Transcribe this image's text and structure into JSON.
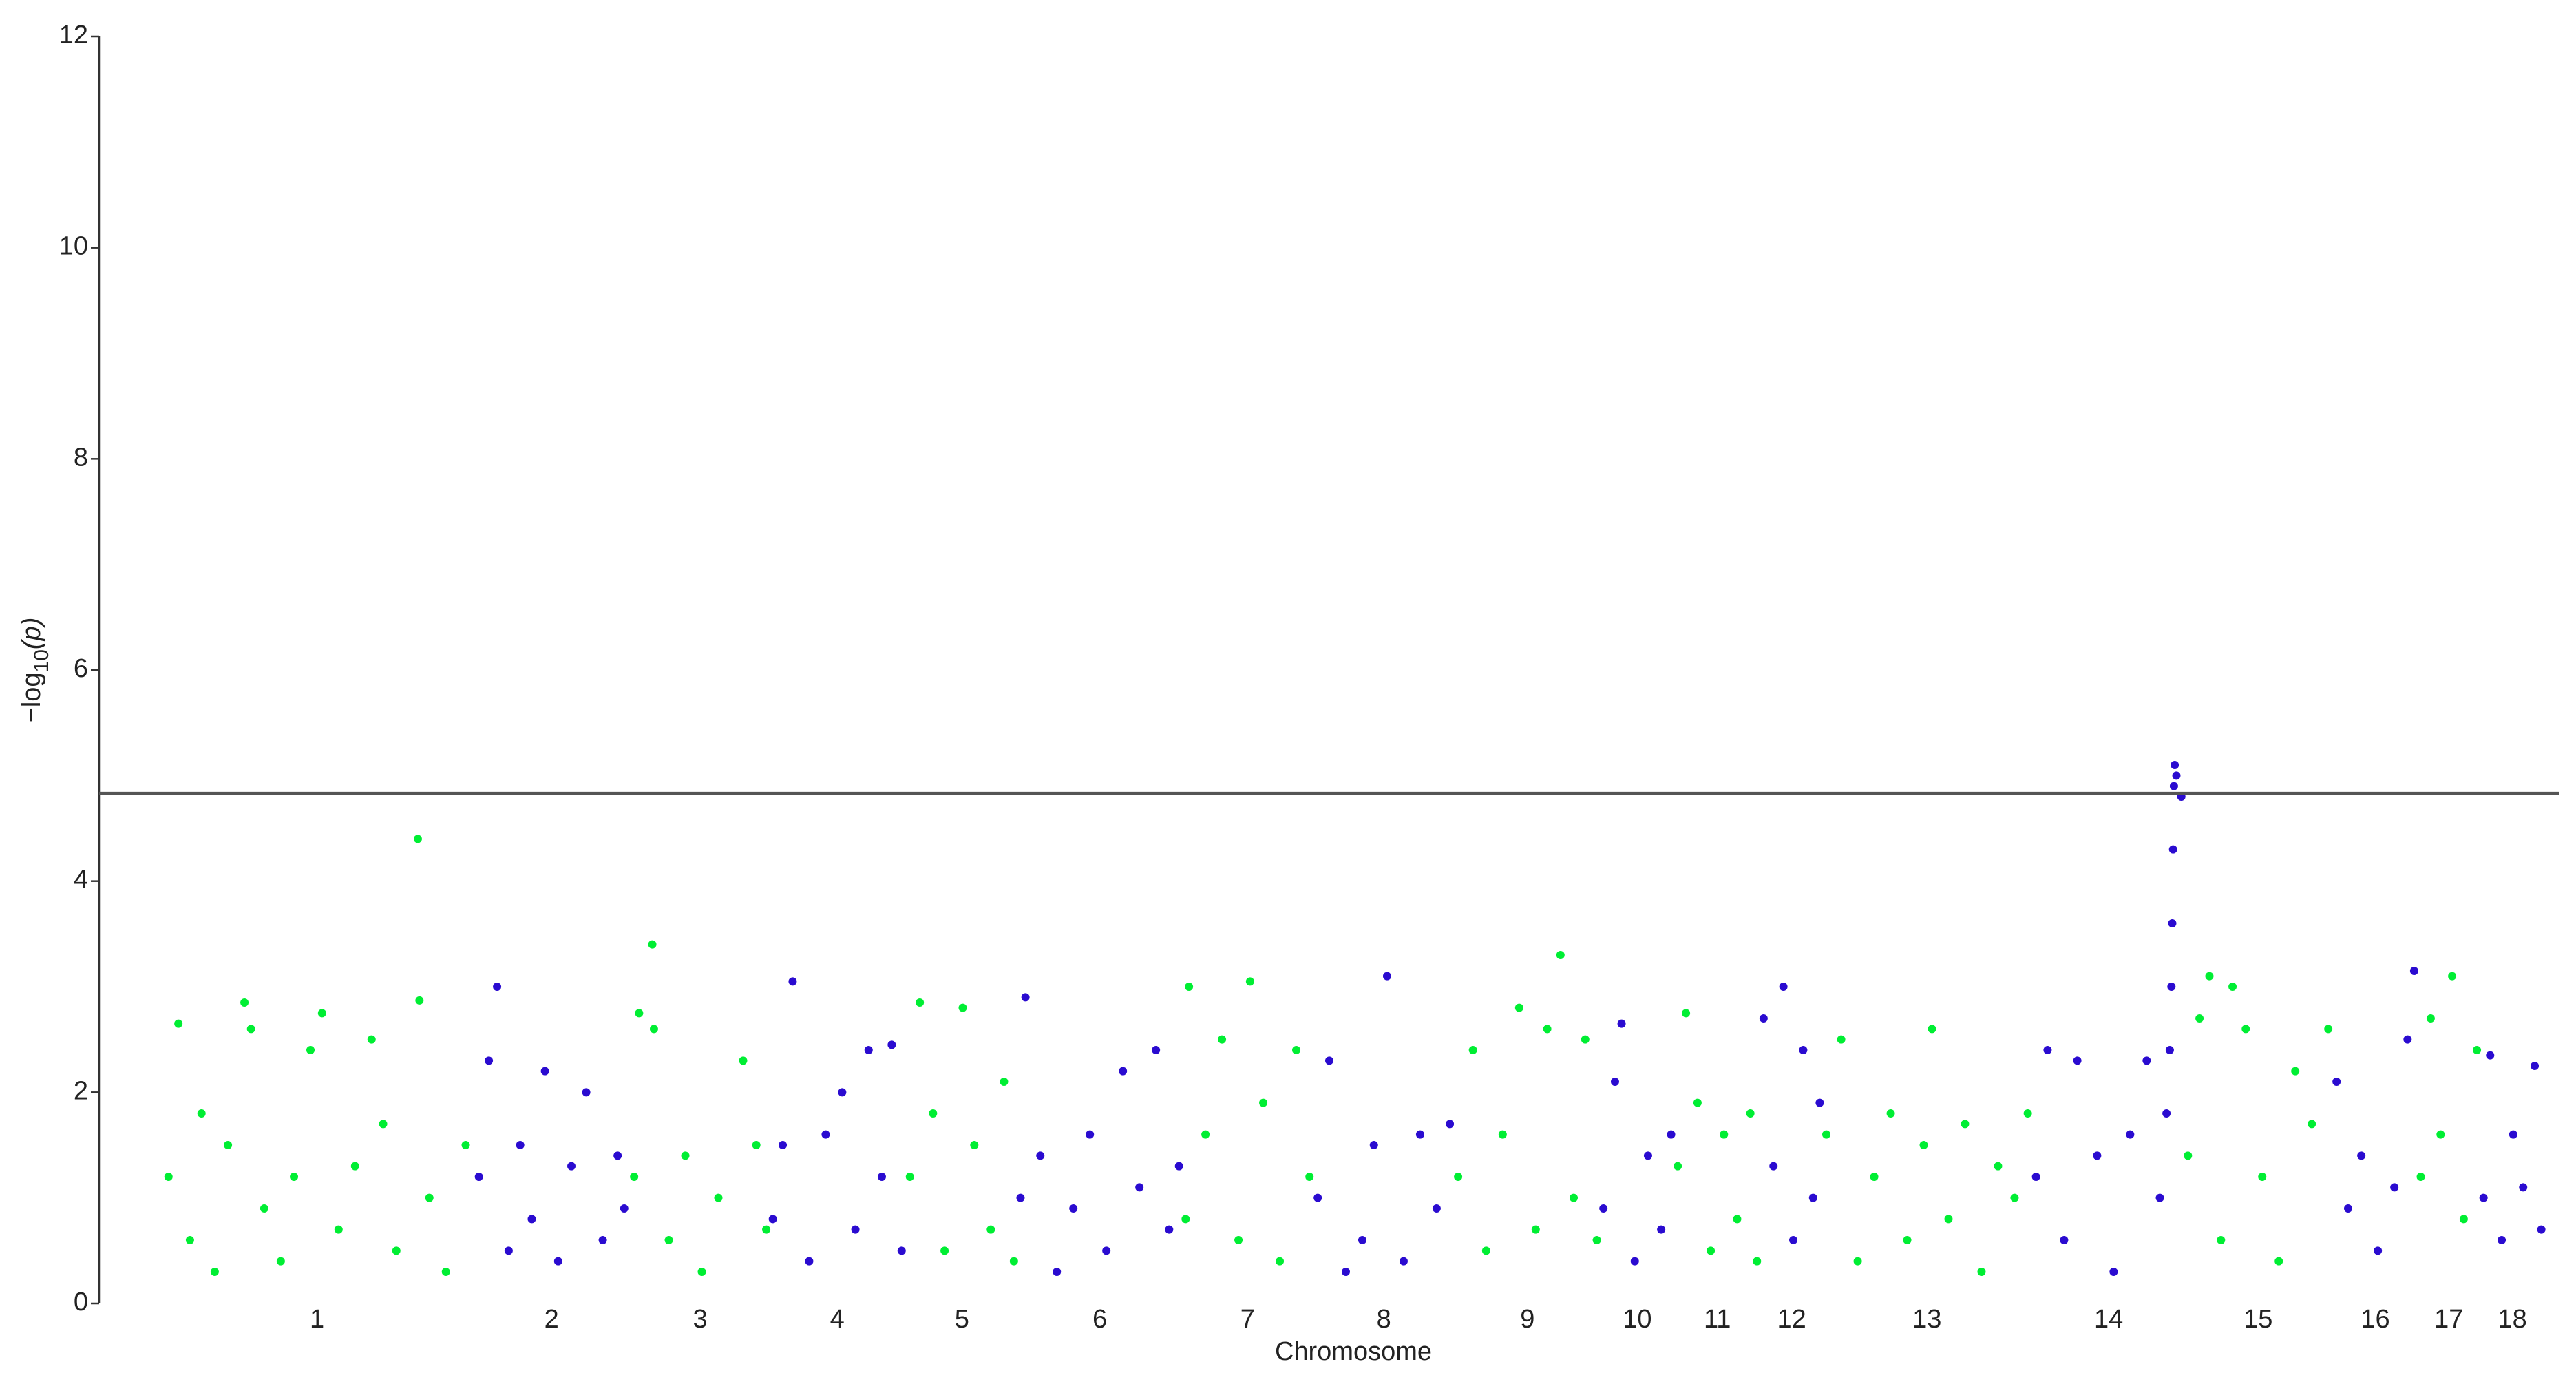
{
  "chart_data": {
    "type": "scatter",
    "x_label": "Chromosome",
    "y_label": [
      "−log",
      "10",
      "(p)"
    ],
    "xlim": [
      0,
      1490
    ],
    "ylim": [
      0,
      12
    ],
    "yticks": [
      0,
      2,
      4,
      6,
      8,
      10,
      12
    ],
    "grid": false,
    "threshold": 4.83,
    "threshold_color": "#555555",
    "series": [
      {
        "name": "1",
        "color": "#00ee33",
        "x": [
          42,
          48,
          55,
          62,
          70,
          78,
          88,
          92,
          100,
          110,
          118,
          128,
          135,
          145,
          155,
          165,
          172,
          180,
          193,
          194,
          200,
          210,
          222
        ],
        "values": [
          1.2,
          2.65,
          0.6,
          1.8,
          0.3,
          1.5,
          2.85,
          2.6,
          0.9,
          0.4,
          1.2,
          2.4,
          2.75,
          0.7,
          1.3,
          2.5,
          1.7,
          0.5,
          4.4,
          2.87,
          1.0,
          0.3,
          1.5
        ]
      },
      {
        "name": "2",
        "color": "#2a0bd0",
        "x": [
          230,
          236,
          241,
          248,
          255,
          262,
          270,
          278,
          286,
          295,
          305,
          314,
          318
        ],
        "values": [
          1.2,
          2.3,
          3.0,
          0.5,
          1.5,
          0.8,
          2.2,
          0.4,
          1.3,
          2.0,
          0.6,
          1.4,
          0.9
        ]
      },
      {
        "name": "3",
        "color": "#00ee33",
        "x": [
          324,
          327,
          335,
          336,
          345,
          355,
          365,
          375,
          390,
          398,
          404
        ],
        "values": [
          1.2,
          2.75,
          3.4,
          2.6,
          0.6,
          1.4,
          0.3,
          1.0,
          2.3,
          1.5,
          0.7
        ]
      },
      {
        "name": "4",
        "color": "#2a0bd0",
        "x": [
          408,
          414,
          420,
          430,
          440,
          450,
          458,
          466,
          474,
          480,
          486
        ],
        "values": [
          0.8,
          1.5,
          3.05,
          0.4,
          1.6,
          2.0,
          0.7,
          2.4,
          1.2,
          2.45,
          0.5
        ]
      },
      {
        "name": "5",
        "color": "#00ee33",
        "x": [
          491,
          497,
          505,
          512,
          523,
          530,
          540,
          548,
          554
        ],
        "values": [
          1.2,
          2.85,
          1.8,
          0.5,
          2.8,
          1.5,
          0.7,
          2.1,
          0.4
        ]
      },
      {
        "name": "6",
        "color": "#2a0bd0",
        "x": [
          558,
          561,
          570,
          580,
          590,
          600,
          610,
          620,
          630,
          640,
          648,
          654
        ],
        "values": [
          1.0,
          2.9,
          1.4,
          0.3,
          0.9,
          1.6,
          0.5,
          2.2,
          1.1,
          2.4,
          0.7,
          1.3
        ]
      },
      {
        "name": "7",
        "color": "#00ee33",
        "x": [
          658,
          660,
          670,
          680,
          690,
          697,
          705,
          715,
          725,
          733
        ],
        "values": [
          0.8,
          3.0,
          1.6,
          2.5,
          0.6,
          3.05,
          1.9,
          0.4,
          2.4,
          1.2
        ]
      },
      {
        "name": "8",
        "color": "#2a0bd0",
        "x": [
          738,
          745,
          755,
          765,
          772,
          780,
          790,
          800,
          810,
          818
        ],
        "values": [
          1.0,
          2.3,
          0.3,
          0.6,
          1.5,
          3.1,
          0.4,
          1.6,
          0.9,
          1.7
        ]
      },
      {
        "name": "9",
        "color": "#00ee33",
        "x": [
          823,
          832,
          840,
          850,
          860,
          870,
          877,
          885,
          893,
          900,
          907
        ],
        "values": [
          1.2,
          2.4,
          0.5,
          1.6,
          2.8,
          0.7,
          2.6,
          3.3,
          1.0,
          2.5,
          0.6
        ]
      },
      {
        "name": "10",
        "color": "#2a0bd0",
        "x": [
          911,
          918,
          922,
          930,
          938,
          946,
          952
        ],
        "values": [
          0.9,
          2.1,
          2.65,
          0.4,
          1.4,
          0.7,
          1.6
        ]
      },
      {
        "name": "11",
        "color": "#00ee33",
        "x": [
          956,
          961,
          968,
          976,
          984,
          992,
          1000,
          1004
        ],
        "values": [
          1.3,
          2.75,
          1.9,
          0.5,
          1.6,
          0.8,
          1.8,
          0.4
        ]
      },
      {
        "name": "12",
        "color": "#2a0bd0",
        "x": [
          1008,
          1014,
          1020,
          1026,
          1032,
          1038,
          1042
        ],
        "values": [
          2.7,
          1.3,
          3.0,
          0.6,
          2.4,
          1.0,
          1.9
        ]
      },
      {
        "name": "13",
        "color": "#00ee33",
        "x": [
          1046,
          1055,
          1065,
          1075,
          1085,
          1095,
          1105,
          1110,
          1120,
          1130,
          1140,
          1150,
          1160,
          1168
        ],
        "values": [
          1.6,
          2.5,
          0.4,
          1.2,
          1.8,
          0.6,
          1.5,
          2.6,
          0.8,
          1.7,
          0.3,
          1.3,
          1.0,
          1.8
        ]
      },
      {
        "name": "14",
        "color": "#2a0bd0",
        "x": [
          1173,
          1180,
          1190,
          1198,
          1210,
          1220,
          1230,
          1240,
          1248,
          1252,
          1254,
          1255,
          1255.5,
          1256,
          1256.5,
          1257,
          1258,
          1261
        ],
        "values": [
          1.2,
          2.4,
          0.6,
          2.3,
          1.4,
          0.3,
          1.6,
          2.3,
          1.0,
          1.8,
          2.4,
          3.0,
          3.6,
          4.3,
          4.9,
          5.1,
          5.0,
          4.8
        ]
      },
      {
        "name": "15",
        "color": "#00ee33",
        "x": [
          1265,
          1272,
          1278,
          1285,
          1292,
          1300,
          1310,
          1320,
          1330,
          1340,
          1350
        ],
        "values": [
          1.4,
          2.7,
          3.1,
          0.6,
          3.0,
          2.6,
          1.2,
          0.4,
          2.2,
          1.7,
          2.6
        ]
      },
      {
        "name": "16",
        "color": "#2a0bd0",
        "x": [
          1355,
          1362,
          1370,
          1380,
          1390,
          1398,
          1402
        ],
        "values": [
          2.1,
          0.9,
          1.4,
          0.5,
          1.1,
          2.5,
          3.15
        ]
      },
      {
        "name": "17",
        "color": "#00ee33",
        "x": [
          1406,
          1412,
          1418,
          1425,
          1432,
          1440
        ],
        "values": [
          1.2,
          2.7,
          1.6,
          3.1,
          0.8,
          2.4
        ]
      },
      {
        "name": "18",
        "color": "#2a0bd0",
        "x": [
          1444,
          1448,
          1455,
          1462,
          1468,
          1475,
          1479
        ],
        "values": [
          1.0,
          2.35,
          0.6,
          1.6,
          1.1,
          2.25,
          0.7
        ]
      }
    ]
  }
}
